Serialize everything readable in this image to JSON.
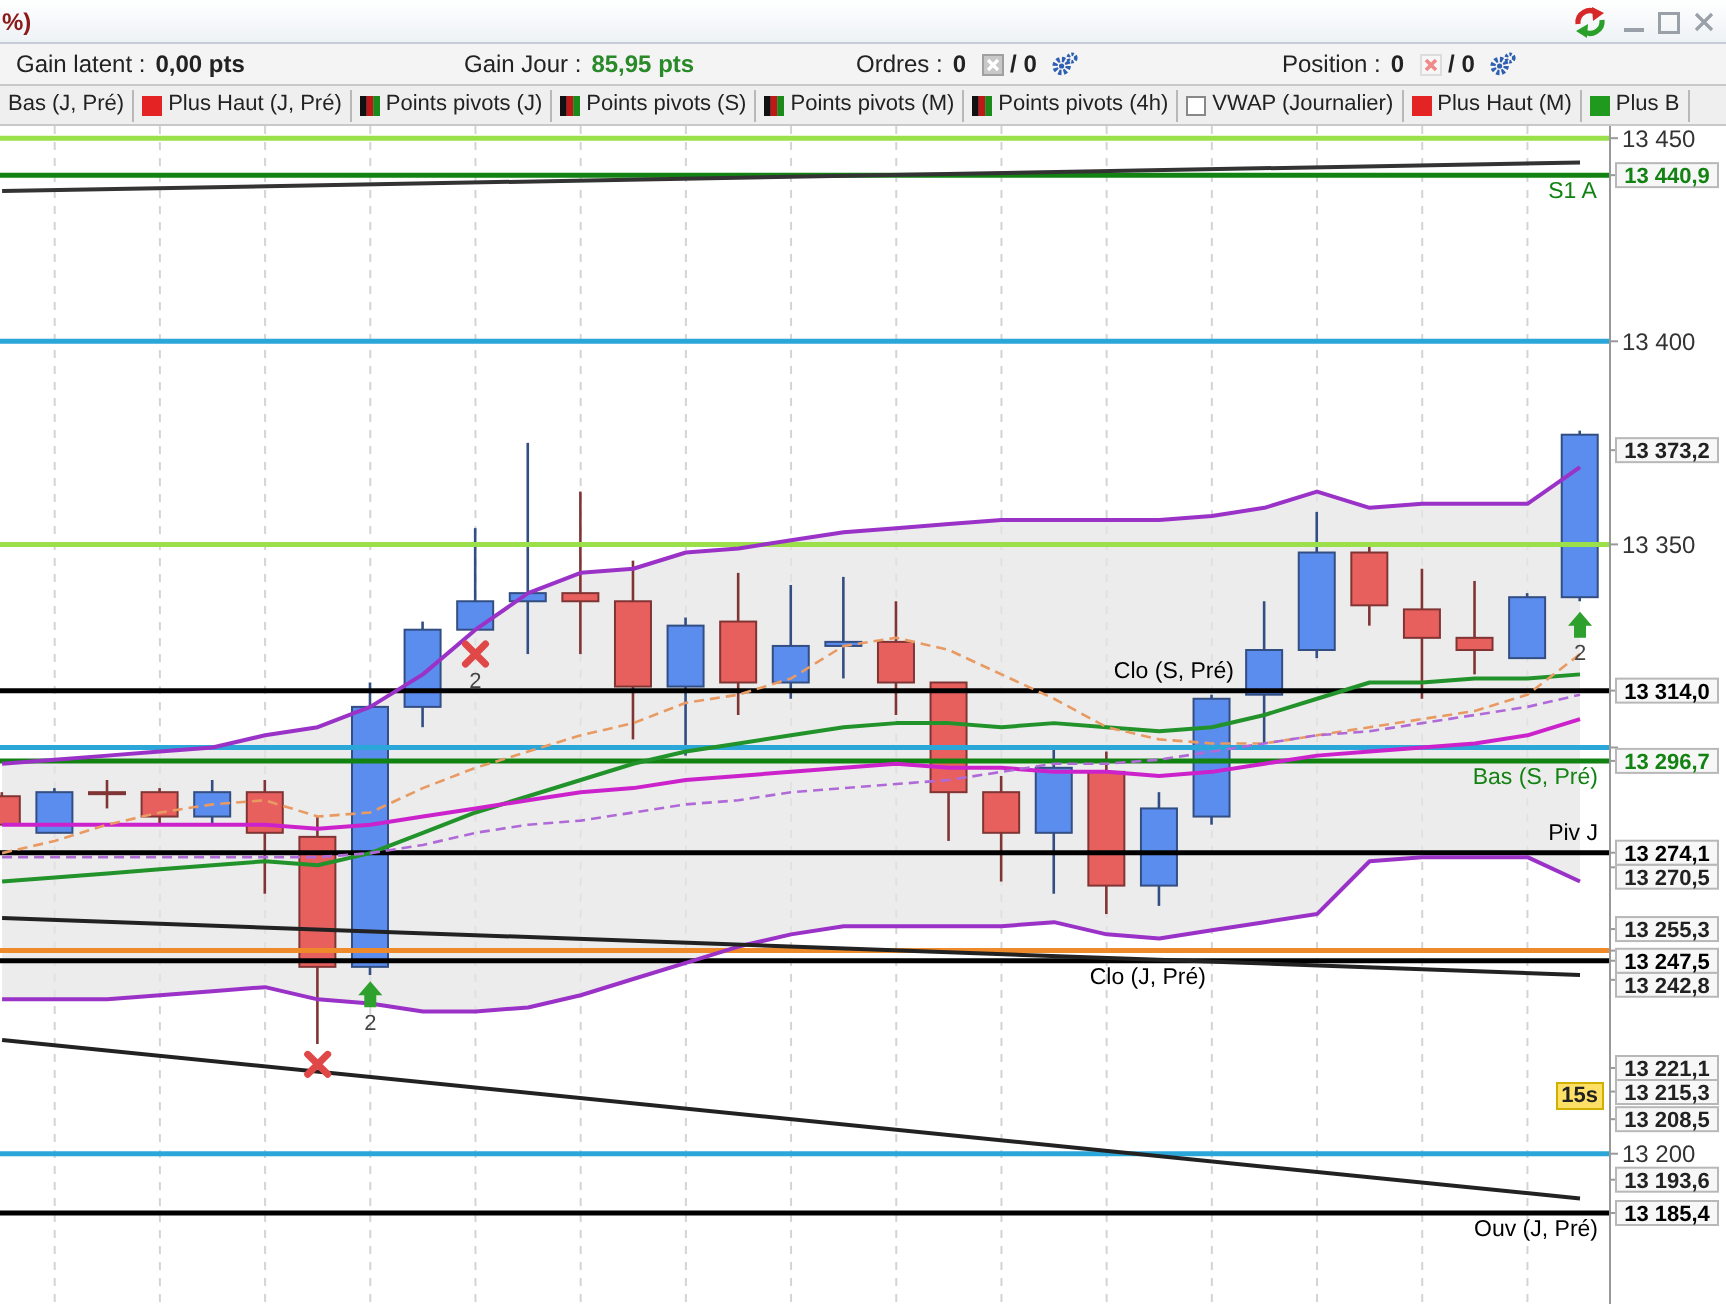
{
  "chart_data": {
    "type": "candlestick",
    "title": "%)",
    "categories": [
      null,
      null,
      null,
      null,
      null,
      null,
      null,
      null,
      null,
      null,
      null,
      null,
      null,
      null,
      null,
      null,
      null,
      null,
      null,
      null,
      null,
      null,
      null,
      null,
      null,
      null,
      null,
      null,
      null,
      null,
      null
    ],
    "ohlc": [
      [
        13288,
        13289,
        13281,
        13281
      ],
      [
        13279,
        13290,
        13279,
        13289
      ],
      [
        13289,
        13292,
        13285,
        13289
      ],
      [
        13289,
        13290,
        13281,
        13283
      ],
      [
        13283,
        13292,
        13281,
        13289
      ],
      [
        13289,
        13292,
        13264,
        13279
      ],
      [
        13278,
        13283,
        13227,
        13246
      ],
      [
        13246,
        13316,
        13244,
        13310
      ],
      [
        13310,
        13331,
        13305,
        13329
      ],
      [
        13329,
        13354,
        13329,
        13336
      ],
      [
        13336,
        13375,
        13323,
        13338
      ],
      [
        13338,
        13363,
        13323,
        13336
      ],
      [
        13336,
        13346,
        13302,
        13315
      ],
      [
        13315,
        13332,
        13298,
        13330
      ],
      [
        13331,
        13343,
        13308,
        13316
      ],
      [
        13316,
        13340,
        13312,
        13325
      ],
      [
        13325,
        13342,
        13317,
        13326
      ],
      [
        13326,
        13336,
        13308,
        13316
      ],
      [
        13316,
        13316,
        13277,
        13289
      ],
      [
        13289,
        13293,
        13267,
        13279
      ],
      [
        13279,
        13300,
        13264,
        13295
      ],
      [
        13294,
        13299,
        13259,
        13266
      ],
      [
        13266,
        13289,
        13261,
        13285
      ],
      [
        13283,
        13313,
        13281,
        13312
      ],
      [
        13313,
        13336,
        13301,
        13324
      ],
      [
        13324,
        13358,
        13322,
        13348
      ],
      [
        13348,
        13350,
        13330,
        13335
      ],
      [
        13334,
        13344,
        13312,
        13327
      ],
      [
        13327,
        13341,
        13318,
        13324
      ],
      [
        13322,
        13338,
        13322,
        13337
      ],
      [
        13337,
        13378,
        13336,
        13377
      ]
    ],
    "colors": [
      "#e8605e",
      "#5b8def",
      "#e8605e",
      "#e8605e",
      "#5b8def",
      "#e8605e",
      "#e8605e",
      "#5b8def",
      "#5b8def",
      "#5b8def",
      "#5b8def",
      "#e8605e",
      "#e8605e",
      "#5b8def",
      "#e8605e",
      "#5b8def",
      "#5b8def",
      "#e8605e",
      "#e8605e",
      "#e8605e",
      "#5b8def",
      "#e8605e",
      "#5b8def",
      "#5b8def",
      "#5b8def",
      "#5b8def",
      "#e8605e",
      "#e8605e",
      "#e8605e",
      "#5b8def",
      "#5b8def"
    ],
    "series": [
      {
        "type": "line",
        "color": "#22922a",
        "values": [
          13267,
          13268,
          13269,
          13270,
          13271,
          13272,
          13271,
          13274,
          13279,
          13284,
          13288,
          13292,
          13296,
          13299,
          13301,
          13303,
          13305,
          13306,
          13306,
          13305,
          13306,
          13305,
          13304,
          13305,
          13308,
          13312,
          13316,
          13316,
          13317,
          13317,
          13318
        ],
        "lower": [
          13238,
          13238,
          13238,
          13239,
          13240,
          13241,
          13238,
          13237,
          13235,
          13235,
          13236,
          13239,
          13243,
          13247,
          13251,
          13254,
          13256,
          13256,
          13256,
          13256,
          13257,
          13254,
          13253,
          13255,
          13257,
          13259,
          13272,
          13273,
          13273,
          13273,
          13267
        ],
        "upper": [
          13296,
          13297,
          13298,
          13299,
          13300,
          13303,
          13305,
          13310,
          13318,
          13329,
          13338,
          13343,
          13344,
          13348,
          13349,
          13351,
          13353,
          13354,
          13355,
          13356,
          13356,
          13356,
          13356,
          13357,
          13359,
          13363,
          13359,
          13360,
          13360,
          13360,
          13369
        ]
      },
      {
        "type": "line",
        "color": "#9b32c8",
        "values": [
          13296,
          13297,
          13298,
          13299,
          13300,
          13303,
          13305,
          13310,
          13318,
          13329,
          13338,
          13343,
          13344,
          13348,
          13349,
          13351,
          13353,
          13354,
          13355,
          13356,
          13356,
          13356,
          13356,
          13357,
          13359,
          13363,
          13359,
          13360,
          13360,
          13360,
          13369
        ]
      },
      {
        "type": "line",
        "color": "#9b32c8",
        "values": [
          13238,
          13238,
          13238,
          13239,
          13240,
          13241,
          13238,
          13237,
          13235,
          13235,
          13236,
          13239,
          13243,
          13247,
          13251,
          13254,
          13256,
          13256,
          13256,
          13256,
          13257,
          13254,
          13253,
          13255,
          13257,
          13259,
          13272,
          13273,
          13273,
          13273,
          13267
        ]
      },
      {
        "type": "line",
        "color": "#cc22cc",
        "values": [
          13281,
          13281,
          13281,
          13281,
          13281,
          13281,
          13280,
          13281,
          13283,
          13285,
          13287,
          13289,
          13290,
          13292,
          13293,
          13294,
          13295,
          13296,
          13295,
          13295,
          13294,
          13294,
          13293,
          13294,
          13296,
          13298,
          13299,
          13300,
          13301,
          13303,
          13307
        ]
      },
      {
        "type": "line",
        "color": "#e89a62",
        "line_style": "dashed",
        "values": [
          13274,
          13277,
          13281,
          13284,
          13286,
          13287,
          13283,
          13284,
          13290,
          13295,
          13299,
          13303,
          13306,
          13311,
          13313,
          13317,
          13325,
          13327,
          13324,
          13318,
          13312,
          13305,
          13302,
          13301,
          13301,
          13303,
          13305,
          13307,
          13309,
          13313,
          13323
        ]
      },
      {
        "type": "line",
        "color": "#b06ad8",
        "line_style": "dashed",
        "values": [
          13273,
          13273,
          13273,
          13273,
          13273,
          13273,
          13273,
          13274,
          13276,
          13279,
          13281,
          13282,
          13284,
          13286,
          13287,
          13289,
          13290,
          13291,
          13292,
          13294,
          13296,
          13296,
          13297,
          13299,
          13301,
          13303,
          13304,
          13306,
          13308,
          13310,
          13313
        ]
      },
      {
        "type": "line",
        "color": "#333333",
        "values": [
          13437,
          null,
          null,
          null,
          null,
          null,
          null,
          null,
          null,
          null,
          null,
          null,
          null,
          null,
          null,
          null,
          null,
          null,
          null,
          null,
          null,
          null,
          null,
          null,
          null,
          null,
          null,
          null,
          null,
          null,
          13444
        ]
      },
      {
        "type": "line",
        "color": "#222222",
        "values": [
          13258,
          null,
          null,
          null,
          null,
          null,
          null,
          null,
          null,
          null,
          null,
          null,
          null,
          null,
          null,
          null,
          null,
          null,
          null,
          null,
          null,
          null,
          null,
          null,
          null,
          null,
          null,
          null,
          null,
          null,
          13244
        ]
      },
      {
        "type": "line",
        "color": "#222222",
        "values": [
          13228,
          null,
          null,
          null,
          null,
          null,
          null,
          null,
          null,
          null,
          null,
          null,
          null,
          null,
          null,
          null,
          null,
          null,
          null,
          null,
          null,
          null,
          null,
          null,
          null,
          null,
          null,
          null,
          null,
          null,
          13189
        ]
      },
      {
        "type": "scatter",
        "color": "#e04848",
        "marker": "cross",
        "values": [
          null,
          null,
          null,
          null,
          null,
          null,
          13222,
          null,
          null,
          13323,
          null,
          null,
          null,
          null,
          null,
          null,
          null,
          null,
          null,
          null,
          null,
          null,
          null,
          null,
          null,
          null,
          null,
          null,
          null,
          null,
          null
        ]
      },
      {
        "type": "scatter",
        "color": "#2ea02e",
        "marker": "triangle",
        "values": [
          null,
          null,
          null,
          null,
          null,
          null,
          null,
          13239,
          null,
          null,
          null,
          null,
          null,
          null,
          null,
          null,
          null,
          null,
          null,
          null,
          null,
          null,
          null,
          null,
          null,
          null,
          null,
          null,
          null,
          null,
          13330
        ]
      }
    ],
    "ylim": [
      13163,
      13453
    ],
    "yticks": [
      {
        "value": 13200,
        "label": "13 200"
      },
      {
        "value": 13250,
        "label": null
      },
      {
        "value": 13300,
        "label": null
      },
      {
        "value": 13350,
        "label": "13 350"
      },
      {
        "value": 13400,
        "label": "13 400"
      },
      {
        "value": 13450,
        "label": "13 450"
      }
    ],
    "y2lim": [
      13163,
      13453
    ],
    "y2ticks": [
      {
        "value": 13440.9,
        "label": "13 440,9"
      },
      {
        "value": 13373.2,
        "label": "13 373,2"
      },
      {
        "value": 13314,
        "label": "13 314,0"
      },
      {
        "value": 13296.7,
        "label": "13 296,7"
      },
      {
        "value": 13274.1,
        "label": "13 274,1"
      },
      {
        "value": 13270.5,
        "label": "13 270,5"
      },
      {
        "value": 13255.3,
        "label": "13 255,3"
      },
      {
        "value": 13247.5,
        "label": "13 247,5"
      },
      {
        "value": 13242.8,
        "label": "13 242,8"
      },
      {
        "value": 13221.1,
        "label": "13 221,1"
      },
      {
        "value": 13215.3,
        "label": "13 215,3"
      },
      {
        "value": 13208.5,
        "label": "13 208,5"
      },
      {
        "value": 13193.6,
        "label": "13 193,6"
      },
      {
        "value": 13185.4,
        "label": "13 185,4"
      }
    ],
    "grid": "x",
    "tick_labels": "y",
    "ref_lines": [
      {
        "axis": "y",
        "value": 13450,
        "color": "#9be04a"
      },
      {
        "axis": "y",
        "value": 13440.9,
        "label": "S1 A",
        "color": "#128212"
      },
      {
        "axis": "y",
        "value": 13400,
        "color": "#2aa6d8"
      },
      {
        "axis": "y",
        "value": 13350,
        "color": "#9be04a"
      },
      {
        "axis": "y",
        "value": 13314,
        "label": "Clo (S, Pré)",
        "color": "#000000"
      },
      {
        "axis": "y",
        "value": 13300,
        "color": "#2aa6d8"
      },
      {
        "axis": "y",
        "value": 13296.7,
        "label": "Bas (S, Pré)",
        "color": "#128212"
      },
      {
        "axis": "y",
        "value": 13274.1,
        "label": "Piv J",
        "color": "#000000"
      },
      {
        "axis": "y",
        "value": 13250,
        "color": "#ef8a2a"
      },
      {
        "axis": "y",
        "value": 13247.5,
        "label": "Clo (J, Pré)",
        "color": "#000000"
      },
      {
        "axis": "y",
        "value": 13200,
        "color": "#2aa6d8"
      },
      {
        "axis": "y",
        "value": 13185.4,
        "label": "Ouv (J, Pré)",
        "color": "#000000"
      }
    ],
    "annotations": [
      "Gain latent :",
      "0,00 pts",
      "Gain Jour :",
      "85,95 pts",
      "Ordres :",
      "0",
      "/ 0",
      "Position :",
      "0",
      "/ 0",
      "Bas (J, Pré)",
      "Plus Haut (J, Pré)",
      "Points pivots (J)",
      "Points pivots (S)",
      "Points pivots (M)",
      "Points pivots (4h)",
      "VWAP (Journalier)",
      "Plus Haut (M)",
      "Plus B",
      "15s",
      {
        "text": "2",
        "y": 13323
      },
      {
        "text": "2",
        "y": 13239
      },
      {
        "text": "2",
        "y": 13330
      }
    ]
  }
}
